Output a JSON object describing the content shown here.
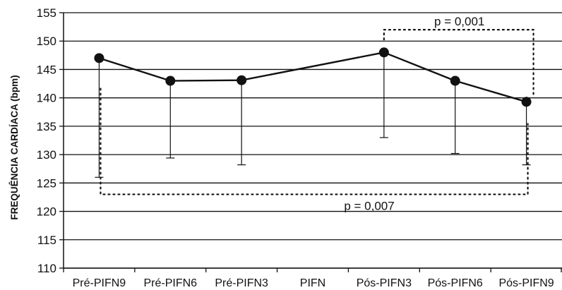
{
  "chart_data": {
    "type": "line",
    "ylabel": "FREQUÊNCIA CARDÍACA (bpm)",
    "ylim": [
      110,
      155
    ],
    "yticks": [
      110,
      115,
      120,
      125,
      130,
      135,
      140,
      145,
      150,
      155
    ],
    "grid": true,
    "categories": [
      "Pré-PIFN9",
      "Pré-PIFN6",
      "Pré-PIFN3",
      "PIFN",
      "Pós-PIFN3",
      "Pós-PIFN6",
      "Pós-PIFN9"
    ],
    "series": [
      {
        "values": [
          147,
          143,
          143.1,
          null,
          148,
          143,
          139.3
        ],
        "error_lower": [
          126,
          129.4,
          128.2,
          null,
          133,
          130.2,
          128.2
        ]
      }
    ],
    "annotations": [
      {
        "text": "p = 0,001",
        "from": "Pós-PIFN3",
        "to": "Pós-PIFN9",
        "level": 152,
        "position": "above"
      },
      {
        "text": "p = 0,007",
        "from": "Pré-PIFN9",
        "to": "Pós-PIFN9",
        "level": 123,
        "position": "below"
      }
    ]
  }
}
